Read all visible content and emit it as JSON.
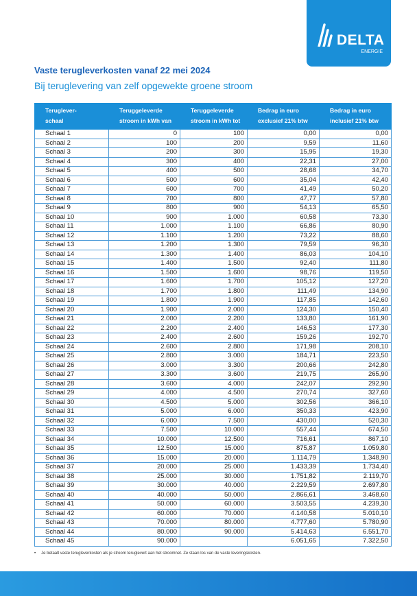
{
  "logo": {
    "name": "DELTA",
    "sub": "ENERGIE"
  },
  "header": {
    "title": "Vaste terugleverkosten vanaf 22 mei 2024",
    "subtitle": "Bij teruglevering van zelf opgewekte groene stroom"
  },
  "table": {
    "columns": [
      "Teruglever-\nschaal",
      "Teruggeleverde\nstroom in kWh van",
      "Teruggeleverde\nstroom in kWh tot",
      "Bedrag in euro\nexclusief 21% btw",
      "Bedrag in euro\ninclusief 21% btw"
    ],
    "rows": [
      [
        "Schaal 1",
        "0",
        "100",
        "0,00",
        "0,00"
      ],
      [
        "Schaal 2",
        "100",
        "200",
        "9,59",
        "11,60"
      ],
      [
        "Schaal 3",
        "200",
        "300",
        "15,95",
        "19,30"
      ],
      [
        "Schaal 4",
        "300",
        "400",
        "22,31",
        "27,00"
      ],
      [
        "Schaal 5",
        "400",
        "500",
        "28,68",
        "34,70"
      ],
      [
        "Schaal 6",
        "500",
        "600",
        "35,04",
        "42,40"
      ],
      [
        "Schaal 7",
        "600",
        "700",
        "41,49",
        "50,20"
      ],
      [
        "Schaal 8",
        "700",
        "800",
        "47,77",
        "57,80"
      ],
      [
        "Schaal 9",
        "800",
        "900",
        "54,13",
        "65,50"
      ],
      [
        "Schaal 10",
        "900",
        "1.000",
        "60,58",
        "73,30"
      ],
      [
        "Schaal 11",
        "1.000",
        "1.100",
        "66,86",
        "80,90"
      ],
      [
        "Schaal 12",
        "1.100",
        "1.200",
        "73,22",
        "88,60"
      ],
      [
        "Schaal 13",
        "1.200",
        "1.300",
        "79,59",
        "96,30"
      ],
      [
        "Schaal 14",
        "1.300",
        "1.400",
        "86,03",
        "104,10"
      ],
      [
        "Schaal 15",
        "1.400",
        "1.500",
        "92,40",
        "111,80"
      ],
      [
        "Schaal 16",
        "1.500",
        "1.600",
        "98,76",
        "119,50"
      ],
      [
        "Schaal 17",
        "1.600",
        "1.700",
        "105,12",
        "127,20"
      ],
      [
        "Schaal 18",
        "1.700",
        "1.800",
        "111,49",
        "134,90"
      ],
      [
        "Schaal 19",
        "1.800",
        "1.900",
        "117,85",
        "142,60"
      ],
      [
        "Schaal 20",
        "1.900",
        "2.000",
        "124,30",
        "150,40"
      ],
      [
        "Schaal 21",
        "2.000",
        "2.200",
        "133,80",
        "161,90"
      ],
      [
        "Schaal 22",
        "2.200",
        "2.400",
        "146,53",
        "177,30"
      ],
      [
        "Schaal 23",
        "2.400",
        "2.600",
        "159,26",
        "192,70"
      ],
      [
        "Schaal 24",
        "2.600",
        "2.800",
        "171,98",
        "208,10"
      ],
      [
        "Schaal 25",
        "2.800",
        "3.000",
        "184,71",
        "223,50"
      ],
      [
        "Schaal 26",
        "3.000",
        "3.300",
        "200,66",
        "242,80"
      ],
      [
        "Schaal 27",
        "3.300",
        "3.600",
        "219,75",
        "265,90"
      ],
      [
        "Schaal 28",
        "3.600",
        "4.000",
        "242,07",
        "292,90"
      ],
      [
        "Schaal 29",
        "4.000",
        "4.500",
        "270,74",
        "327,60"
      ],
      [
        "Schaal 30",
        "4.500",
        "5.000",
        "302,56",
        "366,10"
      ],
      [
        "Schaal 31",
        "5.000",
        "6.000",
        "350,33",
        "423,90"
      ],
      [
        "Schaal 32",
        "6.000",
        "7.500",
        "430,00",
        "520,30"
      ],
      [
        "Schaal 33",
        "7.500",
        "10.000",
        "557,44",
        "674,50"
      ],
      [
        "Schaal 34",
        "10.000",
        "12.500",
        "716,61",
        "867,10"
      ],
      [
        "Schaal 35",
        "12.500",
        "15.000",
        "875,87",
        "1.059,80"
      ],
      [
        "Schaal 36",
        "15.000",
        "20.000",
        "1.114,79",
        "1.348,90"
      ],
      [
        "Schaal 37",
        "20.000",
        "25.000",
        "1.433,39",
        "1.734,40"
      ],
      [
        "Schaal 38",
        "25.000",
        "30.000",
        "1.751,82",
        "2.119,70"
      ],
      [
        "Schaal 39",
        "30.000",
        "40.000",
        "2.229,59",
        "2.697,80"
      ],
      [
        "Schaal 40",
        "40.000",
        "50.000",
        "2.866,61",
        "3.468,60"
      ],
      [
        "Schaal 41",
        "50.000",
        "60.000",
        "3.503,55",
        "4.239,30"
      ],
      [
        "Schaal 42",
        "60.000",
        "70.000",
        "4.140,58",
        "5.010,10"
      ],
      [
        "Schaal 43",
        "70.000",
        "80.000",
        "4.777,60",
        "5.780,90"
      ],
      [
        "Schaal 44",
        "80.000",
        "90.000",
        "5.414,63",
        "6.551,70"
      ],
      [
        "Schaal 45",
        "90.000",
        null,
        "6.051,65",
        "7.322,50"
      ]
    ]
  },
  "footnote": "Je betaalt vaste terugleverkosten als je stroom teruglevert aan het stroomnet. Ze staan los van de vaste leveringskosten."
}
